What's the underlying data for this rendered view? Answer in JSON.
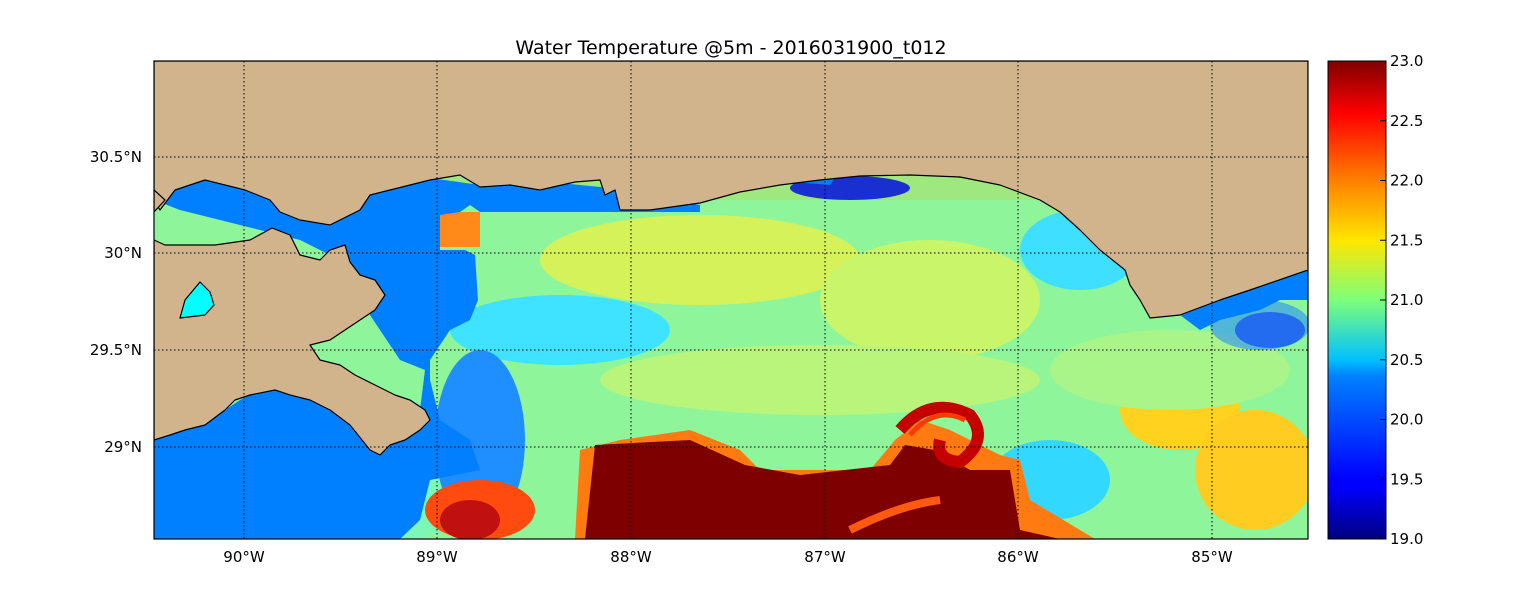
{
  "title": "Water Temperature @5m - 2016031900_t012",
  "map": {
    "lon_range": [
      -90.47,
      -84.5
    ],
    "lat_range": [
      28.55,
      30.97
    ],
    "land_color": "#d2b48c",
    "water_mask_color": "#0080ff",
    "lake_color": "#00ffff",
    "gridlines": "dotted",
    "lon_ticks": [
      {
        "value": -90,
        "label": "90°W"
      },
      {
        "value": -89,
        "label": "89°W"
      },
      {
        "value": -88,
        "label": "88°W"
      },
      {
        "value": -87,
        "label": "87°W"
      },
      {
        "value": -86,
        "label": "86°W"
      },
      {
        "value": -85,
        "label": "85°W"
      }
    ],
    "lat_ticks": [
      {
        "value": 30.5,
        "label": "30.5°N"
      },
      {
        "value": 30.0,
        "label": "30°N"
      },
      {
        "value": 29.5,
        "label": "29.5°N"
      },
      {
        "value": 29.0,
        "label": "29°N"
      }
    ]
  },
  "colorbar": {
    "colormap": "jet",
    "min": 19.0,
    "max": 23.0,
    "ticks": [
      "19.0",
      "19.5",
      "20.0",
      "20.5",
      "21.0",
      "21.5",
      "22.0",
      "22.5",
      "23.0"
    ],
    "tick_values": [
      19.0,
      19.5,
      20.0,
      20.5,
      21.0,
      21.5,
      22.0,
      22.5,
      23.0
    ]
  }
}
